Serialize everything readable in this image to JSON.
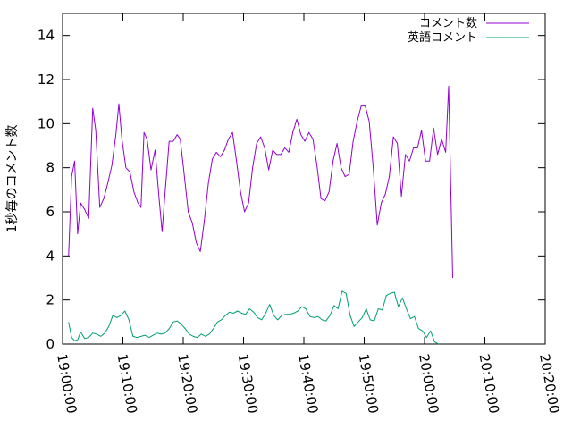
{
  "chart_data": {
    "type": "line",
    "title": "",
    "xlabel": "",
    "ylabel": "1秒毎のコメント数",
    "ylim": [
      0,
      15
    ],
    "yticks": [
      0,
      2,
      4,
      6,
      8,
      10,
      12,
      14
    ],
    "xlim": [
      "19:00:00",
      "20:20:00"
    ],
    "xtick_labels": [
      "19:00:00",
      "19:10:00",
      "19:20:00",
      "19:30:00",
      "19:40:00",
      "19:50:00",
      "20:00:00",
      "20:10:00",
      "20:20:00"
    ],
    "legend_position": "top-right",
    "grid": false,
    "x_unit": "time (HH:MM:SS)",
    "series": [
      {
        "name": "コメント数",
        "color": "#9400d3",
        "points": [
          [
            "19:01:00",
            4.0
          ],
          [
            "19:01:30",
            7.6
          ],
          [
            "19:02:00",
            8.3
          ],
          [
            "19:02:30",
            5.0
          ],
          [
            "19:03:00",
            6.4
          ],
          [
            "19:03:40",
            6.1
          ],
          [
            "19:04:20",
            5.7
          ],
          [
            "19:05:00",
            10.7
          ],
          [
            "19:05:30",
            9.7
          ],
          [
            "19:06:10",
            6.2
          ],
          [
            "19:06:50",
            6.6
          ],
          [
            "19:07:30",
            7.3
          ],
          [
            "19:08:10",
            8.1
          ],
          [
            "19:08:50",
            9.5
          ],
          [
            "19:09:20",
            10.9
          ],
          [
            "19:09:50",
            9.3
          ],
          [
            "19:10:30",
            8.0
          ],
          [
            "19:11:10",
            7.8
          ],
          [
            "19:11:50",
            6.9
          ],
          [
            "19:12:30",
            6.4
          ],
          [
            "19:13:00",
            6.2
          ],
          [
            "19:13:30",
            9.6
          ],
          [
            "19:14:00",
            9.3
          ],
          [
            "19:14:40",
            7.9
          ],
          [
            "19:15:20",
            8.8
          ],
          [
            "19:16:00",
            6.6
          ],
          [
            "19:16:30",
            5.1
          ],
          [
            "19:17:00",
            6.9
          ],
          [
            "19:17:40",
            9.2
          ],
          [
            "19:18:20",
            9.2
          ],
          [
            "19:19:00",
            9.5
          ],
          [
            "19:19:30",
            9.3
          ],
          [
            "19:20:00",
            8.1
          ],
          [
            "19:20:50",
            6.0
          ],
          [
            "19:21:30",
            5.5
          ],
          [
            "19:22:10",
            4.6
          ],
          [
            "19:22:50",
            4.2
          ],
          [
            "19:23:30",
            5.6
          ],
          [
            "19:24:10",
            7.3
          ],
          [
            "19:24:50",
            8.4
          ],
          [
            "19:25:30",
            8.7
          ],
          [
            "19:26:10",
            8.5
          ],
          [
            "19:26:50",
            8.8
          ],
          [
            "19:27:30",
            9.3
          ],
          [
            "19:28:10",
            9.6
          ],
          [
            "19:28:50",
            8.3
          ],
          [
            "19:29:30",
            6.9
          ],
          [
            "19:30:10",
            6.0
          ],
          [
            "19:30:50",
            6.4
          ],
          [
            "19:31:30",
            8.0
          ],
          [
            "19:32:10",
            9.1
          ],
          [
            "19:32:50",
            9.4
          ],
          [
            "19:33:30",
            8.9
          ],
          [
            "19:34:10",
            7.9
          ],
          [
            "19:34:50",
            8.8
          ],
          [
            "19:35:30",
            8.6
          ],
          [
            "19:36:10",
            8.6
          ],
          [
            "19:36:50",
            8.9
          ],
          [
            "19:37:30",
            8.7
          ],
          [
            "19:38:10",
            9.6
          ],
          [
            "19:38:50",
            10.2
          ],
          [
            "19:39:30",
            9.5
          ],
          [
            "19:40:10",
            9.2
          ],
          [
            "19:40:50",
            9.6
          ],
          [
            "19:41:30",
            9.3
          ],
          [
            "19:42:10",
            8.1
          ],
          [
            "19:42:50",
            6.6
          ],
          [
            "19:43:30",
            6.5
          ],
          [
            "19:44:10",
            6.9
          ],
          [
            "19:44:50",
            8.3
          ],
          [
            "19:45:30",
            9.1
          ],
          [
            "19:46:10",
            8.0
          ],
          [
            "19:46:50",
            7.6
          ],
          [
            "19:47:30",
            7.7
          ],
          [
            "19:48:10",
            9.2
          ],
          [
            "19:48:50",
            10.1
          ],
          [
            "19:49:30",
            10.8
          ],
          [
            "19:50:10",
            10.8
          ],
          [
            "19:50:50",
            10.1
          ],
          [
            "19:51:30",
            8.0
          ],
          [
            "19:52:10",
            5.4
          ],
          [
            "19:52:50",
            6.4
          ],
          [
            "19:53:30",
            6.8
          ],
          [
            "19:54:10",
            7.6
          ],
          [
            "19:54:50",
            9.4
          ],
          [
            "19:55:30",
            9.1
          ],
          [
            "19:56:10",
            6.7
          ],
          [
            "19:56:50",
            8.6
          ],
          [
            "19:57:30",
            8.3
          ],
          [
            "19:58:10",
            8.9
          ],
          [
            "19:58:50",
            8.9
          ],
          [
            "19:59:30",
            9.7
          ],
          [
            "20:00:10",
            8.3
          ],
          [
            "20:00:50",
            8.3
          ],
          [
            "20:01:30",
            9.8
          ],
          [
            "20:02:10",
            8.6
          ],
          [
            "20:02:50",
            9.3
          ],
          [
            "20:03:30",
            8.7
          ],
          [
            "20:04:00",
            11.7
          ],
          [
            "20:04:40",
            3.0
          ]
        ]
      },
      {
        "name": "英語コメント",
        "color": "#009e73",
        "points": [
          [
            "19:01:00",
            1.0
          ],
          [
            "19:01:30",
            0.3
          ],
          [
            "19:02:00",
            0.15
          ],
          [
            "19:02:30",
            0.2
          ],
          [
            "19:03:00",
            0.55
          ],
          [
            "19:03:40",
            0.25
          ],
          [
            "19:04:20",
            0.3
          ],
          [
            "19:05:00",
            0.5
          ],
          [
            "19:05:40",
            0.45
          ],
          [
            "19:06:20",
            0.35
          ],
          [
            "19:07:00",
            0.5
          ],
          [
            "19:07:40",
            0.8
          ],
          [
            "19:08:20",
            1.3
          ],
          [
            "19:09:00",
            1.2
          ],
          [
            "19:09:40",
            1.3
          ],
          [
            "19:10:20",
            1.5
          ],
          [
            "19:11:00",
            1.1
          ],
          [
            "19:11:40",
            0.35
          ],
          [
            "19:12:20",
            0.3
          ],
          [
            "19:13:00",
            0.35
          ],
          [
            "19:13:40",
            0.4
          ],
          [
            "19:14:20",
            0.3
          ],
          [
            "19:15:00",
            0.4
          ],
          [
            "19:15:40",
            0.5
          ],
          [
            "19:16:20",
            0.45
          ],
          [
            "19:17:00",
            0.5
          ],
          [
            "19:17:40",
            0.7
          ],
          [
            "19:18:20",
            1.0
          ],
          [
            "19:19:00",
            1.05
          ],
          [
            "19:19:40",
            0.9
          ],
          [
            "19:20:20",
            0.7
          ],
          [
            "19:21:00",
            0.45
          ],
          [
            "19:21:40",
            0.35
          ],
          [
            "19:22:20",
            0.3
          ],
          [
            "19:23:00",
            0.45
          ],
          [
            "19:23:40",
            0.35
          ],
          [
            "19:24:20",
            0.45
          ],
          [
            "19:25:00",
            0.7
          ],
          [
            "19:25:40",
            1.0
          ],
          [
            "19:26:20",
            1.1
          ],
          [
            "19:27:00",
            1.3
          ],
          [
            "19:27:40",
            1.45
          ],
          [
            "19:28:20",
            1.4
          ],
          [
            "19:29:00",
            1.5
          ],
          [
            "19:29:40",
            1.4
          ],
          [
            "19:30:20",
            1.35
          ],
          [
            "19:31:00",
            1.6
          ],
          [
            "19:31:40",
            1.45
          ],
          [
            "19:32:20",
            1.2
          ],
          [
            "19:33:00",
            1.1
          ],
          [
            "19:33:40",
            1.4
          ],
          [
            "19:34:20",
            1.8
          ],
          [
            "19:35:00",
            1.3
          ],
          [
            "19:35:40",
            1.1
          ],
          [
            "19:36:20",
            1.3
          ],
          [
            "19:37:00",
            1.35
          ],
          [
            "19:37:40",
            1.35
          ],
          [
            "19:38:20",
            1.4
          ],
          [
            "19:39:00",
            1.5
          ],
          [
            "19:39:40",
            1.7
          ],
          [
            "19:40:20",
            1.6
          ],
          [
            "19:41:00",
            1.25
          ],
          [
            "19:41:40",
            1.2
          ],
          [
            "19:42:20",
            1.25
          ],
          [
            "19:43:00",
            1.1
          ],
          [
            "19:43:40",
            1.05
          ],
          [
            "19:44:20",
            1.3
          ],
          [
            "19:45:00",
            1.75
          ],
          [
            "19:45:40",
            1.6
          ],
          [
            "19:46:20",
            2.4
          ],
          [
            "19:47:00",
            2.3
          ],
          [
            "19:47:40",
            1.3
          ],
          [
            "19:48:20",
            0.8
          ],
          [
            "19:49:00",
            1.0
          ],
          [
            "19:49:40",
            1.2
          ],
          [
            "19:50:20",
            1.6
          ],
          [
            "19:51:00",
            1.1
          ],
          [
            "19:51:40",
            1.05
          ],
          [
            "19:52:20",
            1.6
          ],
          [
            "19:53:00",
            1.55
          ],
          [
            "19:53:40",
            2.2
          ],
          [
            "19:54:20",
            2.3
          ],
          [
            "19:55:00",
            2.35
          ],
          [
            "19:55:40",
            1.7
          ],
          [
            "19:56:20",
            2.1
          ],
          [
            "19:57:00",
            1.6
          ],
          [
            "19:57:40",
            1.15
          ],
          [
            "19:58:20",
            1.25
          ],
          [
            "19:59:00",
            0.7
          ],
          [
            "19:59:40",
            0.6
          ],
          [
            "20:00:20",
            0.3
          ],
          [
            "20:01:00",
            0.6
          ],
          [
            "20:01:40",
            0.1
          ],
          [
            "20:02:20",
            0.0
          ]
        ]
      }
    ]
  }
}
